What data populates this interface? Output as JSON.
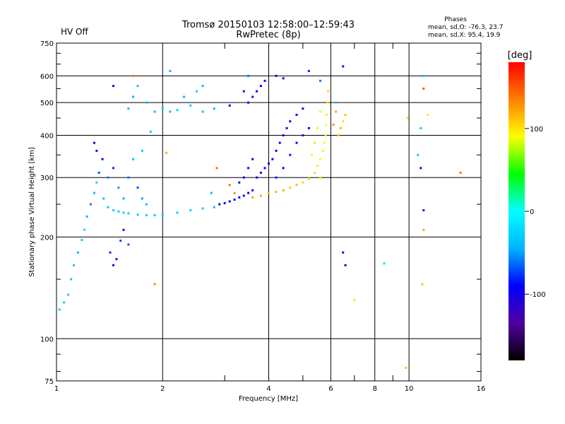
{
  "header": {
    "status": "HV Off",
    "status_color": "#d00000",
    "title": "Tromsø 20150103 12:58:00–12:59:43",
    "subtitle": "RwPretec (8p)",
    "stats_title": "Phases",
    "stats_o": "mean, sd,O: -76.3, 23.7",
    "stats_x": "mean, sd,X:  95.4, 19.9"
  },
  "chart_data": {
    "type": "scatter",
    "xlabel": "Frequency [MHz]",
    "ylabel": "Stationary phase Virtual Height [km]",
    "x_scale": "log",
    "y_scale": "log",
    "xlim": [
      1,
      16
    ],
    "ylim": [
      75,
      750
    ],
    "x_ticks": [
      1,
      2,
      4,
      6,
      8,
      10,
      16
    ],
    "x_ticks_minor": [
      3,
      5,
      7,
      9
    ],
    "y_ticks": [
      75,
      100,
      200,
      300,
      400,
      500,
      600,
      750
    ],
    "grid": true,
    "colorbar": {
      "label": "[deg]",
      "range": [
        -180,
        180
      ],
      "ticks": [
        100,
        0,
        -100
      ],
      "colormap": [
        "#000000",
        "#5000a0",
        "#0000ff",
        "#00b4ff",
        "#00ffff",
        "#00ff00",
        "#ffff00",
        "#ff8000",
        "#ff0000"
      ]
    },
    "series": [
      {
        "points": [
          {
            "x": 1.02,
            "y": 122,
            "p": -30
          },
          {
            "x": 1.05,
            "y": 128,
            "p": -28
          },
          {
            "x": 1.08,
            "y": 135,
            "p": -25
          },
          {
            "x": 1.1,
            "y": 150,
            "p": -30
          },
          {
            "x": 1.12,
            "y": 165,
            "p": -35
          },
          {
            "x": 1.15,
            "y": 180,
            "p": -40
          },
          {
            "x": 1.18,
            "y": 196,
            "p": -32
          },
          {
            "x": 1.2,
            "y": 210,
            "p": -20
          },
          {
            "x": 1.22,
            "y": 230,
            "p": -45
          },
          {
            "x": 1.25,
            "y": 250,
            "p": -60
          },
          {
            "x": 1.28,
            "y": 270,
            "p": -38
          },
          {
            "x": 1.3,
            "y": 290,
            "p": -25
          },
          {
            "x": 1.32,
            "y": 310,
            "p": -70
          },
          {
            "x": 1.35,
            "y": 340,
            "p": -90
          },
          {
            "x": 1.3,
            "y": 360,
            "p": -100
          },
          {
            "x": 1.28,
            "y": 380,
            "p": -110
          },
          {
            "x": 1.36,
            "y": 260,
            "p": -40
          },
          {
            "x": 1.4,
            "y": 245,
            "p": -35
          },
          {
            "x": 1.45,
            "y": 240,
            "p": -30
          },
          {
            "x": 1.5,
            "y": 238,
            "p": -28
          },
          {
            "x": 1.55,
            "y": 236,
            "p": -30
          },
          {
            "x": 1.6,
            "y": 235,
            "p": -32
          },
          {
            "x": 1.7,
            "y": 233,
            "p": -30
          },
          {
            "x": 1.8,
            "y": 232,
            "p": -28
          },
          {
            "x": 1.9,
            "y": 232,
            "p": -30
          },
          {
            "x": 2.0,
            "y": 233,
            "p": -32
          },
          {
            "x": 2.2,
            "y": 236,
            "p": -30
          },
          {
            "x": 2.4,
            "y": 240,
            "p": -28
          },
          {
            "x": 2.6,
            "y": 243,
            "p": -35
          },
          {
            "x": 2.8,
            "y": 245,
            "p": -40
          },
          {
            "x": 1.42,
            "y": 180,
            "p": -80
          },
          {
            "x": 1.45,
            "y": 165,
            "p": -95
          },
          {
            "x": 1.48,
            "y": 172,
            "p": -85
          },
          {
            "x": 1.52,
            "y": 195,
            "p": -75
          },
          {
            "x": 1.55,
            "y": 210,
            "p": -90
          },
          {
            "x": 1.6,
            "y": 190,
            "p": -70
          },
          {
            "x": 1.4,
            "y": 300,
            "p": -60
          },
          {
            "x": 1.45,
            "y": 320,
            "p": -80
          },
          {
            "x": 1.5,
            "y": 280,
            "p": -50
          },
          {
            "x": 1.55,
            "y": 260,
            "p": -45
          },
          {
            "x": 1.6,
            "y": 300,
            "p": -60
          },
          {
            "x": 1.7,
            "y": 280,
            "p": -70
          },
          {
            "x": 1.75,
            "y": 260,
            "p": -50
          },
          {
            "x": 1.8,
            "y": 250,
            "p": -40
          },
          {
            "x": 1.65,
            "y": 340,
            "p": -35
          },
          {
            "x": 1.75,
            "y": 360,
            "p": -30
          },
          {
            "x": 1.6,
            "y": 480,
            "p": -40
          },
          {
            "x": 1.65,
            "y": 520,
            "p": -45
          },
          {
            "x": 1.7,
            "y": 560,
            "p": -30
          },
          {
            "x": 1.8,
            "y": 500,
            "p": -35
          },
          {
            "x": 1.9,
            "y": 470,
            "p": -40
          },
          {
            "x": 2.0,
            "y": 480,
            "p": -30
          },
          {
            "x": 2.1,
            "y": 470,
            "p": -35
          },
          {
            "x": 2.2,
            "y": 475,
            "p": -28
          },
          {
            "x": 2.3,
            "y": 520,
            "p": -40
          },
          {
            "x": 2.4,
            "y": 490,
            "p": -35
          },
          {
            "x": 2.5,
            "y": 540,
            "p": -30
          },
          {
            "x": 2.6,
            "y": 470,
            "p": -35
          },
          {
            "x": 2.8,
            "y": 480,
            "p": -40
          },
          {
            "x": 1.45,
            "y": 560,
            "p": -95
          },
          {
            "x": 2.1,
            "y": 620,
            "p": -40
          },
          {
            "x": 2.6,
            "y": 560,
            "p": -38
          },
          {
            "x": 2.9,
            "y": 250,
            "p": -90
          },
          {
            "x": 3.0,
            "y": 252,
            "p": -100
          },
          {
            "x": 3.1,
            "y": 255,
            "p": -95
          },
          {
            "x": 3.2,
            "y": 258,
            "p": -105
          },
          {
            "x": 3.3,
            "y": 262,
            "p": -100
          },
          {
            "x": 3.4,
            "y": 265,
            "p": -110
          },
          {
            "x": 3.5,
            "y": 270,
            "p": -95
          },
          {
            "x": 3.6,
            "y": 275,
            "p": -100
          },
          {
            "x": 3.3,
            "y": 290,
            "p": -90
          },
          {
            "x": 3.4,
            "y": 300,
            "p": -95
          },
          {
            "x": 3.5,
            "y": 320,
            "p": -100
          },
          {
            "x": 3.6,
            "y": 340,
            "p": -90
          },
          {
            "x": 3.7,
            "y": 300,
            "p": -100
          },
          {
            "x": 3.8,
            "y": 310,
            "p": -105
          },
          {
            "x": 3.9,
            "y": 320,
            "p": -95
          },
          {
            "x": 4.0,
            "y": 330,
            "p": -100
          },
          {
            "x": 4.1,
            "y": 340,
            "p": -90
          },
          {
            "x": 4.2,
            "y": 360,
            "p": -100
          },
          {
            "x": 4.3,
            "y": 380,
            "p": -95
          },
          {
            "x": 4.4,
            "y": 400,
            "p": -100
          },
          {
            "x": 4.5,
            "y": 420,
            "p": -110
          },
          {
            "x": 4.6,
            "y": 440,
            "p": -100
          },
          {
            "x": 4.8,
            "y": 460,
            "p": -95
          },
          {
            "x": 5.0,
            "y": 480,
            "p": -100
          },
          {
            "x": 4.2,
            "y": 300,
            "p": -80
          },
          {
            "x": 4.4,
            "y": 320,
            "p": -90
          },
          {
            "x": 4.6,
            "y": 350,
            "p": -85
          },
          {
            "x": 4.8,
            "y": 380,
            "p": -90
          },
          {
            "x": 5.0,
            "y": 400,
            "p": -85
          },
          {
            "x": 5.2,
            "y": 420,
            "p": -90
          },
          {
            "x": 3.5,
            "y": 500,
            "p": -100
          },
          {
            "x": 3.6,
            "y": 520,
            "p": -105
          },
          {
            "x": 3.7,
            "y": 540,
            "p": -95
          },
          {
            "x": 3.8,
            "y": 560,
            "p": -100
          },
          {
            "x": 3.4,
            "y": 540,
            "p": -110
          },
          {
            "x": 3.9,
            "y": 580,
            "p": -100
          },
          {
            "x": 4.2,
            "y": 600,
            "p": -95
          },
          {
            "x": 4.4,
            "y": 590,
            "p": -90
          },
          {
            "x": 5.2,
            "y": 620,
            "p": -80
          },
          {
            "x": 5.6,
            "y": 580,
            "p": -60
          },
          {
            "x": 3.5,
            "y": 600,
            "p": -60
          },
          {
            "x": 3.1,
            "y": 490,
            "p": -90
          },
          {
            "x": 4.0,
            "y": 270,
            "p": 110
          },
          {
            "x": 4.2,
            "y": 272,
            "p": 115
          },
          {
            "x": 4.4,
            "y": 275,
            "p": 120
          },
          {
            "x": 4.6,
            "y": 280,
            "p": 110
          },
          {
            "x": 4.8,
            "y": 285,
            "p": 115
          },
          {
            "x": 5.0,
            "y": 290,
            "p": 105
          },
          {
            "x": 5.2,
            "y": 298,
            "p": 110
          },
          {
            "x": 5.4,
            "y": 310,
            "p": 100
          },
          {
            "x": 5.5,
            "y": 325,
            "p": 95
          },
          {
            "x": 5.6,
            "y": 340,
            "p": 90
          },
          {
            "x": 5.7,
            "y": 360,
            "p": 85
          },
          {
            "x": 5.75,
            "y": 380,
            "p": 90
          },
          {
            "x": 5.8,
            "y": 400,
            "p": 85
          },
          {
            "x": 5.82,
            "y": 430,
            "p": 90
          },
          {
            "x": 5.85,
            "y": 460,
            "p": 95
          },
          {
            "x": 5.88,
            "y": 500,
            "p": 100
          },
          {
            "x": 5.9,
            "y": 540,
            "p": 105
          },
          {
            "x": 5.6,
            "y": 300,
            "p": 80
          },
          {
            "x": 5.5,
            "y": 420,
            "p": 95
          },
          {
            "x": 5.4,
            "y": 380,
            "p": 100
          },
          {
            "x": 5.3,
            "y": 350,
            "p": 90
          },
          {
            "x": 5.6,
            "y": 470,
            "p": 85
          },
          {
            "x": 3.8,
            "y": 265,
            "p": 120
          },
          {
            "x": 3.6,
            "y": 262,
            "p": 125
          },
          {
            "x": 3.2,
            "y": 270,
            "p": 130
          },
          {
            "x": 3.1,
            "y": 285,
            "p": 140
          },
          {
            "x": 6.3,
            "y": 400,
            "p": 110
          },
          {
            "x": 6.4,
            "y": 420,
            "p": 115
          },
          {
            "x": 6.5,
            "y": 440,
            "p": 100
          },
          {
            "x": 6.6,
            "y": 460,
            "p": 110
          },
          {
            "x": 6.2,
            "y": 470,
            "p": 120
          },
          {
            "x": 6.1,
            "y": 430,
            "p": 130
          },
          {
            "x": 6.5,
            "y": 640,
            "p": -110
          },
          {
            "x": 6.5,
            "y": 180,
            "p": -90
          },
          {
            "x": 6.6,
            "y": 165,
            "p": -95
          },
          {
            "x": 6.2,
            "y": 500,
            "p": -30
          },
          {
            "x": 8.5,
            "y": 167,
            "p": 20
          },
          {
            "x": 7.0,
            "y": 130,
            "p": 100
          },
          {
            "x": 9.8,
            "y": 82,
            "p": 110
          },
          {
            "x": 9.9,
            "y": 450,
            "p": 100
          },
          {
            "x": 10.6,
            "y": 350,
            "p": -30
          },
          {
            "x": 10.8,
            "y": 320,
            "p": -110
          },
          {
            "x": 10.9,
            "y": 600,
            "p": -40
          },
          {
            "x": 11.0,
            "y": 550,
            "p": 150
          },
          {
            "x": 11.0,
            "y": 240,
            "p": -120
          },
          {
            "x": 11.0,
            "y": 210,
            "p": 120
          },
          {
            "x": 10.8,
            "y": 420,
            "p": -30
          },
          {
            "x": 10.9,
            "y": 145,
            "p": 110
          },
          {
            "x": 11.3,
            "y": 460,
            "p": 100
          },
          {
            "x": 14.0,
            "y": 310,
            "p": 140
          },
          {
            "x": 1.9,
            "y": 145,
            "p": 130
          },
          {
            "x": 2.05,
            "y": 355,
            "p": 120
          },
          {
            "x": 1.85,
            "y": 410,
            "p": -30
          },
          {
            "x": 2.75,
            "y": 270,
            "p": -40
          },
          {
            "x": 2.85,
            "y": 320,
            "p": 140
          },
          {
            "x": 1.65,
            "y": 600,
            "p": 140
          }
        ]
      }
    ]
  }
}
